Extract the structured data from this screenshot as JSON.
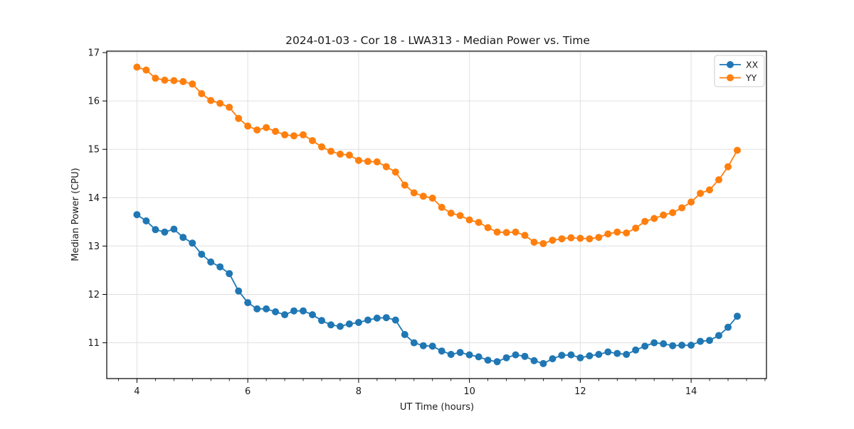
{
  "figure": {
    "background": "#ffffff"
  },
  "chart_data": {
    "type": "line",
    "title": "2024-01-03 - Cor 18 - LWA313 - Median Power vs. Time",
    "xlabel": "UT Time (hours)",
    "ylabel": "Median Power (CPU)",
    "xlim": [
      3.455,
      15.36
    ],
    "ylim": [
      10.26,
      17.03
    ],
    "xticks": [
      4,
      6,
      8,
      10,
      12,
      14
    ],
    "yticks": [
      11,
      12,
      13,
      14,
      15,
      16,
      17
    ],
    "x_minor_interval": 0.3333333,
    "grid": true,
    "marker": "circle",
    "legend_position": "upper right",
    "x": [
      4.0,
      4.167,
      4.333,
      4.5,
      4.667,
      4.833,
      5.0,
      5.167,
      5.333,
      5.5,
      5.667,
      5.833,
      6.0,
      6.167,
      6.333,
      6.5,
      6.667,
      6.833,
      7.0,
      7.167,
      7.333,
      7.5,
      7.667,
      7.833,
      8.0,
      8.167,
      8.333,
      8.5,
      8.667,
      8.833,
      9.0,
      9.167,
      9.333,
      9.5,
      9.667,
      9.833,
      10.0,
      10.167,
      10.333,
      10.5,
      10.667,
      10.833,
      11.0,
      11.167,
      11.333,
      11.5,
      11.667,
      11.833,
      12.0,
      12.167,
      12.333,
      12.5,
      12.667,
      12.833,
      13.0,
      13.167,
      13.333,
      13.5,
      13.667,
      13.833,
      14.0,
      14.167,
      14.333,
      14.5,
      14.667,
      14.833
    ],
    "series": [
      {
        "name": "XX",
        "color": "#1f77b4",
        "values": [
          13.65,
          13.52,
          13.34,
          13.29,
          13.35,
          13.18,
          13.06,
          12.83,
          12.67,
          12.57,
          12.43,
          12.07,
          11.83,
          11.7,
          11.7,
          11.64,
          11.58,
          11.66,
          11.66,
          11.58,
          11.46,
          11.37,
          11.34,
          11.39,
          11.42,
          11.47,
          11.51,
          11.52,
          11.47,
          11.17,
          11.0,
          10.94,
          10.93,
          10.83,
          10.76,
          10.8,
          10.75,
          10.71,
          10.64,
          10.61,
          10.69,
          10.75,
          10.72,
          10.63,
          10.57,
          10.67,
          10.74,
          10.75,
          10.69,
          10.73,
          10.76,
          10.81,
          10.78,
          10.76,
          10.85,
          10.93,
          11.0,
          10.98,
          10.94,
          10.95,
          10.95,
          11.03,
          11.05,
          11.15,
          11.32,
          11.55
        ]
      },
      {
        "name": "YY",
        "color": "#ff7f0e",
        "values": [
          16.7,
          16.64,
          16.47,
          16.43,
          16.42,
          16.4,
          16.35,
          16.15,
          16.01,
          15.95,
          15.87,
          15.64,
          15.48,
          15.4,
          15.45,
          15.37,
          15.3,
          15.28,
          15.3,
          15.18,
          15.05,
          14.96,
          14.9,
          14.88,
          14.77,
          14.75,
          14.74,
          14.64,
          14.53,
          14.26,
          14.1,
          14.03,
          13.99,
          13.8,
          13.68,
          13.63,
          13.54,
          13.49,
          13.38,
          13.29,
          13.28,
          13.29,
          13.22,
          13.08,
          13.05,
          13.12,
          13.15,
          13.17,
          13.16,
          13.15,
          13.18,
          13.25,
          13.29,
          13.27,
          13.37,
          13.51,
          13.57,
          13.64,
          13.69,
          13.79,
          13.91,
          14.09,
          14.16,
          14.37,
          14.64,
          14.98
        ]
      }
    ]
  }
}
